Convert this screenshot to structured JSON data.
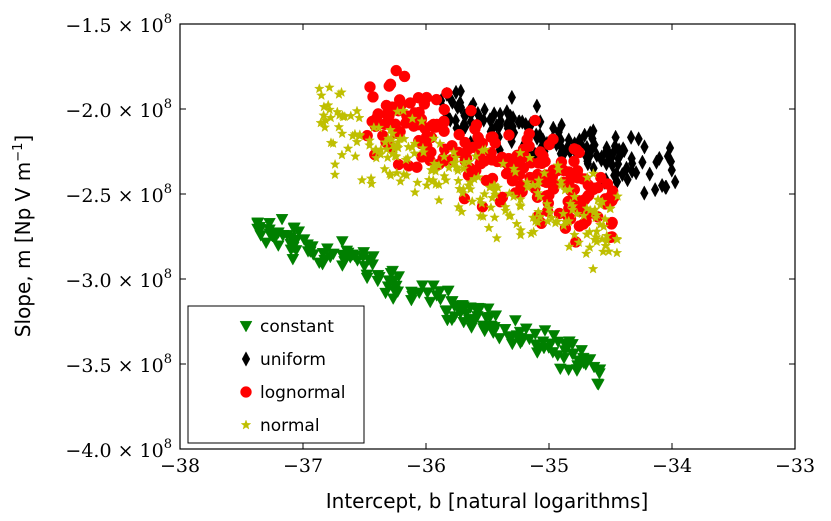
{
  "chart_data": {
    "type": "scatter",
    "title": "",
    "xlabel": "Intercept, b [natural logarithms]",
    "ylabel": "Slope, m [Np V m",
    "ylabel_sup": "−1",
    "ylabel_end": "]",
    "xlim": [
      -38,
      -33
    ],
    "ylim": [
      -400000000,
      -150000000
    ],
    "x_ticks": [
      -38,
      -37,
      -36,
      -35,
      -34,
      -33
    ],
    "x_tick_labels": [
      "−38",
      "−37",
      "−36",
      "−35",
      "−34",
      "−33"
    ],
    "y_ticks": [
      -150000000,
      -200000000,
      -250000000,
      -300000000,
      -350000000,
      -400000000
    ],
    "y_tick_labels": [
      "−1.5 × 10",
      "−2.0 × 10",
      "−2.5 × 10",
      "−3.0 × 10",
      "−3.5 × 10",
      "−4.0 × 10"
    ],
    "y_tick_exponent": "8",
    "legend_position": "lower-left",
    "series": [
      {
        "name": "constant",
        "marker": "triangle-down",
        "color": "#008000",
        "x_range": [
          -37.4,
          -34.55
        ],
        "y_start": -266000000,
        "y_end": -354000000,
        "spread": 8000000,
        "count": 180
      },
      {
        "name": "uniform",
        "marker": "diamond",
        "color": "#000000",
        "x_range": [
          -35.9,
          -33.95
        ],
        "y_start": -200000000,
        "y_end": -240000000,
        "spread": 12000000,
        "count": 160
      },
      {
        "name": "lognormal",
        "marker": "circle",
        "color": "#ff0000",
        "x_range": [
          -36.5,
          -34.45
        ],
        "y_start": -198000000,
        "y_end": -258000000,
        "spread": 22000000,
        "count": 220
      },
      {
        "name": "normal",
        "marker": "star",
        "color": "#bfbf00",
        "x_range": [
          -36.9,
          -34.4
        ],
        "y_start": -205000000,
        "y_end": -275000000,
        "spread": 22000000,
        "count": 240
      }
    ]
  }
}
